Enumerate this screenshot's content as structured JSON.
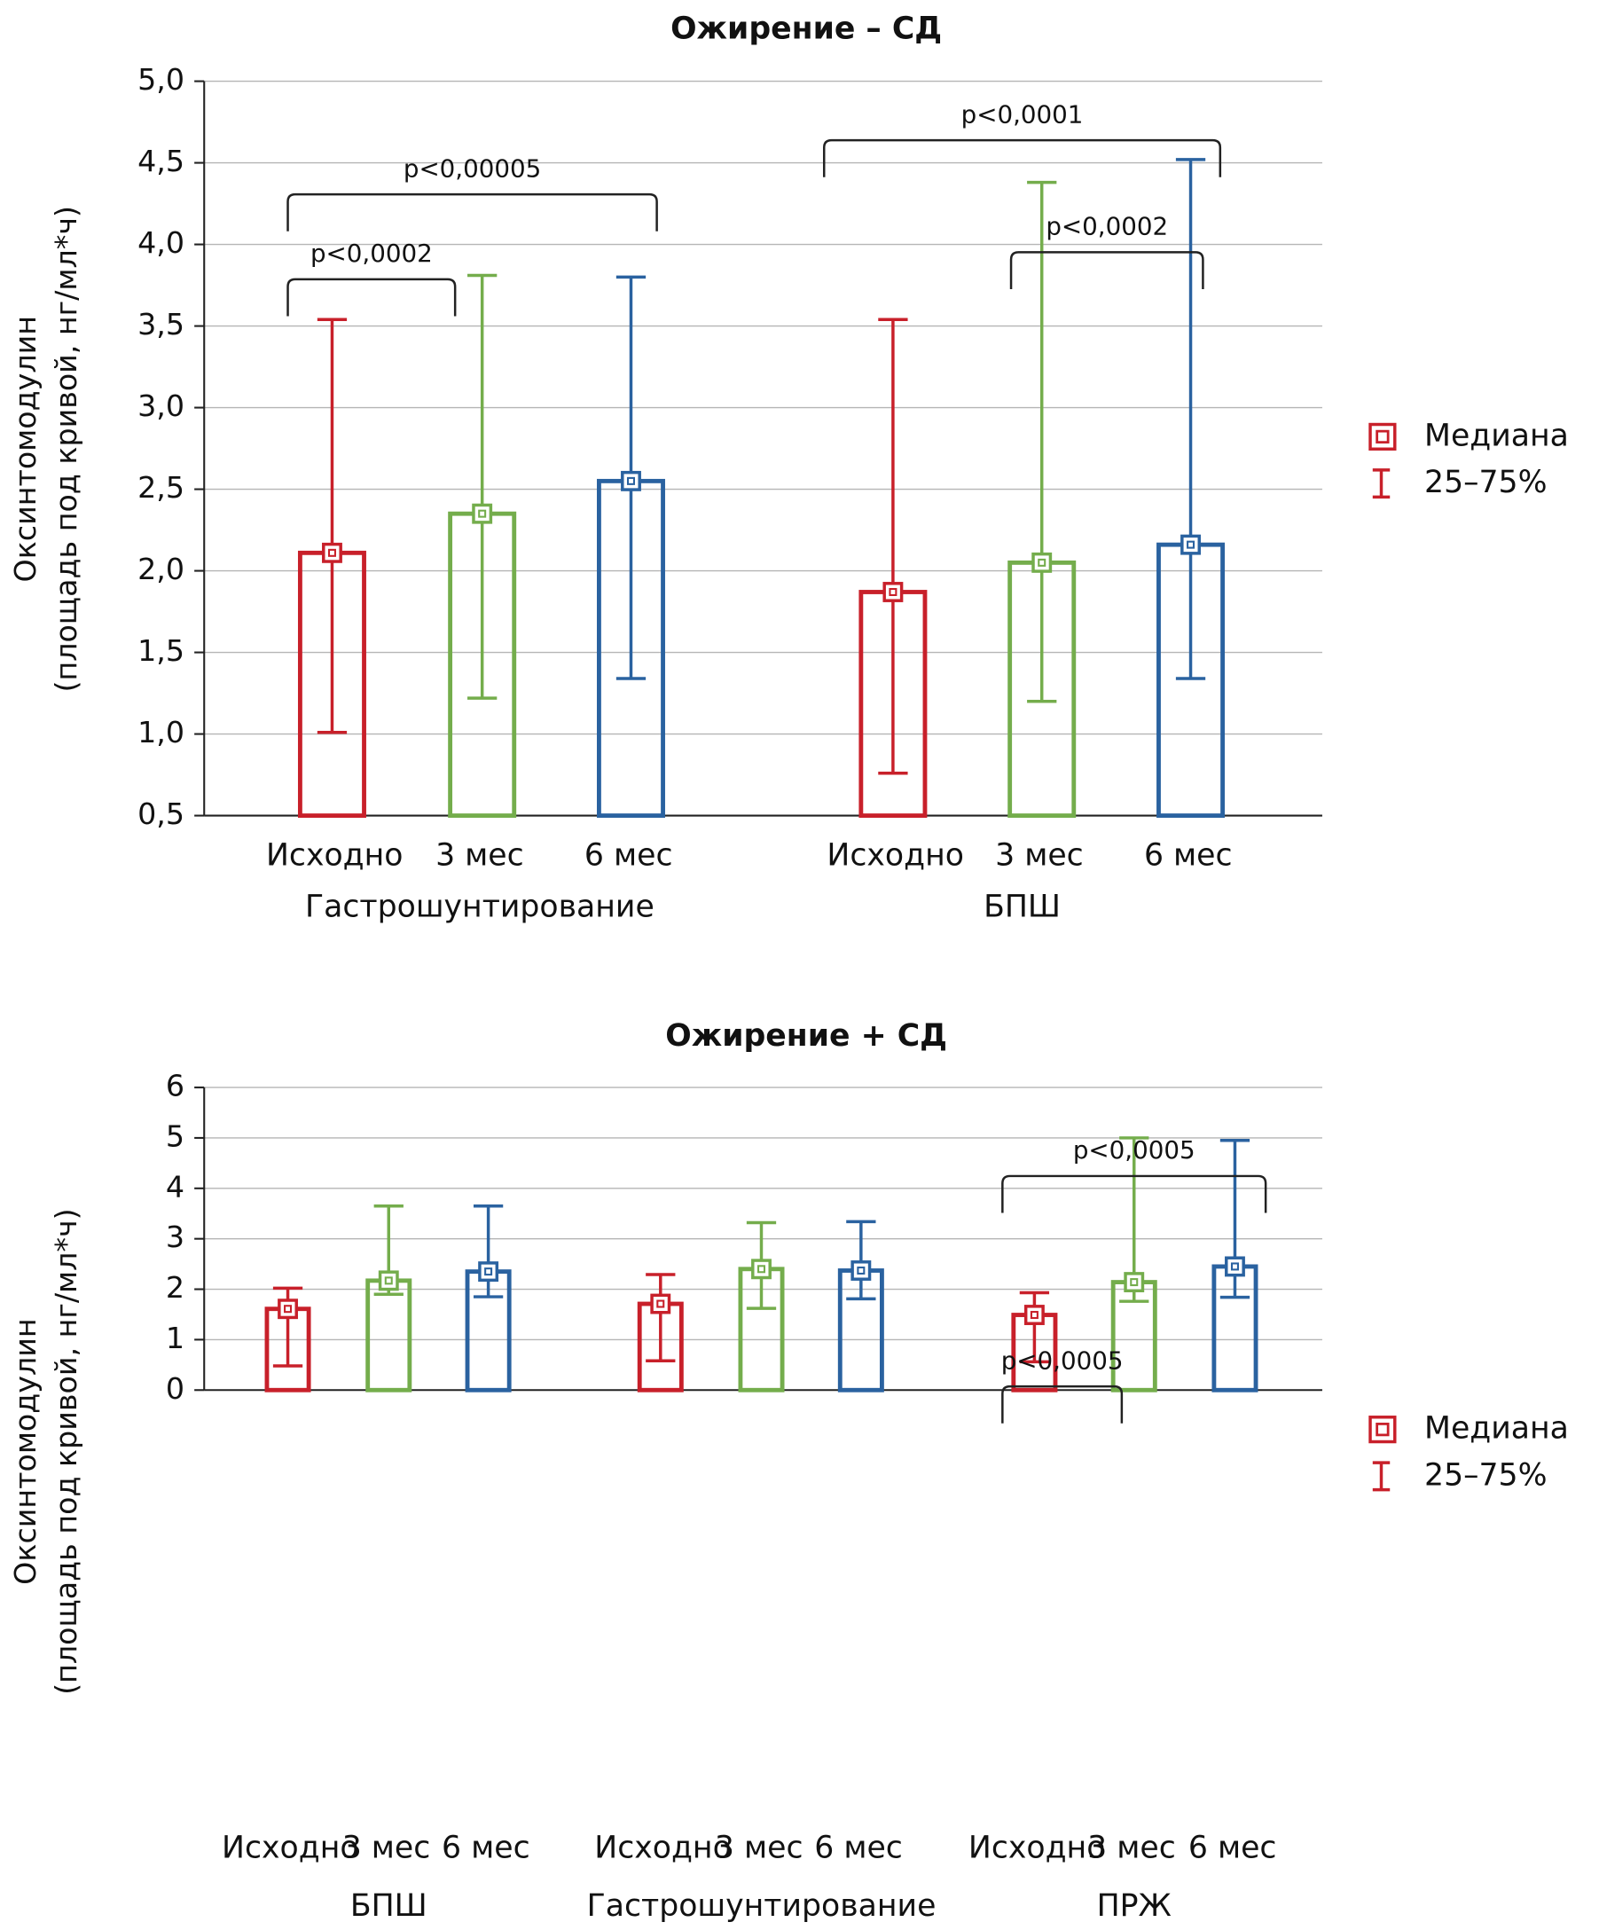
{
  "chart_data": [
    {
      "type": "bar",
      "title": "Ожирение – СД",
      "ylabel": [
        "Оксинтомодулин",
        "(площадь под кривой, нг/мл*ч)"
      ],
      "groups": [
        "Гастрошунтирование",
        "БПШ"
      ],
      "categories": [
        "Исходно",
        "3 мес",
        "6 мес"
      ],
      "colors": [
        "#c8202a",
        "#74ad4c",
        "#2a62a0"
      ],
      "median": [
        [
          2.11,
          2.35,
          2.55
        ],
        [
          1.87,
          2.05,
          2.16
        ]
      ],
      "q25": [
        [
          1.01,
          1.22,
          1.34
        ],
        [
          0.76,
          1.2,
          1.34
        ]
      ],
      "q75": [
        [
          3.54,
          3.81,
          3.8
        ],
        [
          3.54,
          4.38,
          4.52
        ]
      ],
      "ylim": [
        0.5,
        5.0
      ],
      "yticks": [
        {
          "value": 0.5,
          "label": "0,5"
        },
        {
          "value": 1.0,
          "label": "1,0"
        },
        {
          "value": 1.5,
          "label": "1,5"
        },
        {
          "value": 2.0,
          "label": "2,0"
        },
        {
          "value": 2.5,
          "label": "2,5"
        },
        {
          "value": 3.0,
          "label": "3,0"
        },
        {
          "value": 3.5,
          "label": "3,5"
        },
        {
          "value": 4.0,
          "label": "4,0"
        },
        {
          "value": 4.5,
          "label": "4,5"
        },
        {
          "value": 5.0,
          "label": "5,0"
        }
      ],
      "grid": true,
      "legend": [
        "Медиана",
        "25–75%"
      ],
      "annotations": [
        {
          "text": "p<0,0002",
          "group": 0,
          "from": 0,
          "to": 1
        },
        {
          "text": "p<0,00005",
          "group": 0,
          "from": 0,
          "to": 2
        },
        {
          "text": "p<0,0001",
          "group": 1,
          "from": 0,
          "to": 2
        },
        {
          "text": "p<0,0002",
          "group": 1,
          "from": 1,
          "to": 2
        }
      ]
    },
    {
      "type": "bar",
      "title": "Ожирение + СД",
      "ylabel": [
        "Оксинтомодулин",
        "(площадь под кривой, нг/мл*ч)"
      ],
      "groups": [
        "БПШ",
        "Гастрошунтирование",
        "ПРЖ"
      ],
      "categories": [
        "Исходно",
        "3 мес",
        "6 мес"
      ],
      "colors": [
        "#c8202a",
        "#74ad4c",
        "#2a62a0"
      ],
      "median": [
        [
          1.61,
          2.17,
          2.35
        ],
        [
          1.71,
          2.4,
          2.37
        ],
        [
          1.49,
          2.14,
          2.45
        ]
      ],
      "q25": [
        [
          0.48,
          1.9,
          1.85
        ],
        [
          0.58,
          1.62,
          1.81
        ],
        [
          0.56,
          1.76,
          1.84
        ]
      ],
      "q75": [
        [
          2.02,
          3.65,
          3.65
        ],
        [
          2.29,
          3.32,
          3.34
        ],
        [
          1.93,
          5.0,
          4.95
        ]
      ],
      "ylim": [
        0,
        6
      ],
      "yticks": [
        0,
        1,
        2,
        3,
        4,
        5,
        6
      ],
      "grid": true,
      "legend": [
        "Медиана",
        "25–75%"
      ],
      "annotations": [
        {
          "text": "p<0,0005",
          "group": 2,
          "from": 0,
          "to": 1
        },
        {
          "text": "p<0,0005",
          "group": 2,
          "from": 0,
          "to": 2
        }
      ]
    }
  ]
}
